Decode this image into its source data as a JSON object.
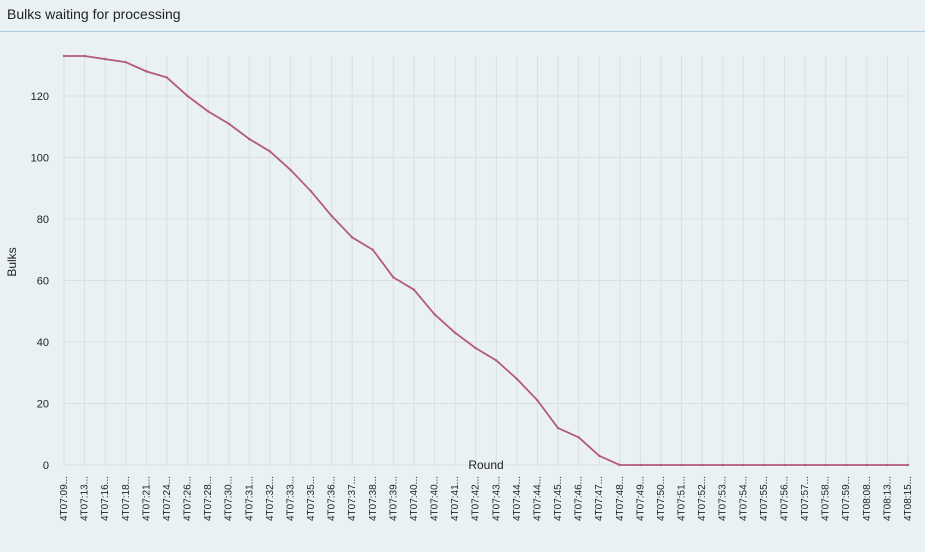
{
  "panel": {
    "title": "Bulks waiting for processing"
  },
  "chart_data": {
    "type": "line",
    "title": "Bulks waiting for processing",
    "xlabel": "Round",
    "ylabel": "Bulks",
    "ylim": [
      0,
      133
    ],
    "yticks": [
      0,
      20,
      40,
      60,
      80,
      100,
      120
    ],
    "grid": true,
    "line_color": "#b35b7b",
    "categories": [
      "4T07:09...",
      "4T07:13...",
      "4T07:16...",
      "4T07:18...",
      "4T07:21...",
      "4T07:24...",
      "4T07:26...",
      "4T07:28...",
      "4T07:30...",
      "4T07:31...",
      "4T07:32...",
      "4T07:33...",
      "4T07:35...",
      "4T07:36...",
      "4T07:37...",
      "4T07:38...",
      "4T07:39...",
      "4T07:40...",
      "4T07:40...",
      "4T07:41...",
      "4T07:42...",
      "4T07:43...",
      "4T07:44...",
      "4T07:44...",
      "4T07:45...",
      "4T07:46...",
      "4T07:47...",
      "4T07:48...",
      "4T07:49...",
      "4T07:50...",
      "4T07:51...",
      "4T07:52...",
      "4T07:53...",
      "4T07:54...",
      "4T07:55...",
      "4T07:56...",
      "4T07:57...",
      "4T07:58...",
      "4T07:59...",
      "4T08:08...",
      "4T08:13...",
      "4T08:15..."
    ],
    "series": [
      {
        "values": [
          133,
          133,
          132,
          131,
          128,
          126,
          120,
          115,
          111,
          106,
          102,
          96,
          89,
          81,
          74,
          70,
          61,
          57,
          49,
          43,
          38,
          34,
          28,
          21,
          12,
          9,
          3,
          0,
          0,
          0,
          0,
          0,
          0,
          0,
          0,
          0,
          0,
          0,
          0,
          0,
          0,
          0
        ]
      }
    ]
  }
}
